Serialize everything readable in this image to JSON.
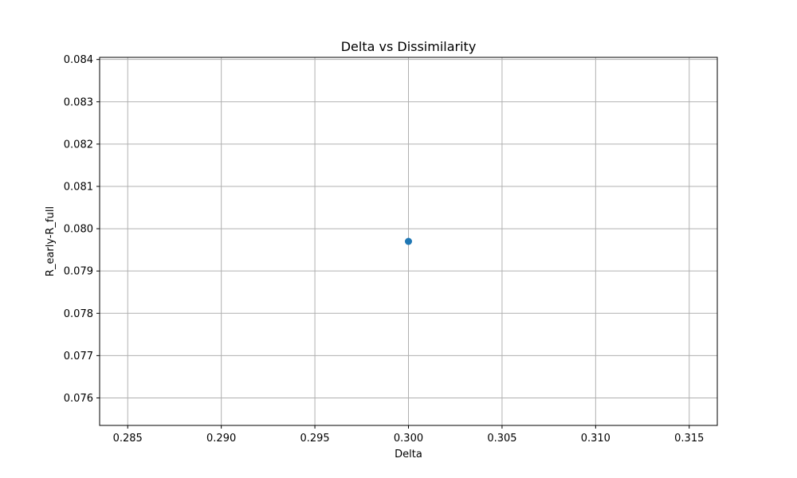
{
  "chart_data": {
    "type": "scatter",
    "title": "Delta vs Dissimilarity",
    "xlabel": "Delta",
    "ylabel": "R_early-R_full",
    "xlim": [
      0.2835,
      0.3165
    ],
    "ylim": [
      0.07535,
      0.08405
    ],
    "x_ticks": [
      "0.285",
      "0.290",
      "0.295",
      "0.300",
      "0.305",
      "0.310",
      "0.315"
    ],
    "y_ticks": [
      "0.076",
      "0.077",
      "0.078",
      "0.079",
      "0.080",
      "0.081",
      "0.082",
      "0.083",
      "0.084"
    ],
    "grid": true,
    "marker_color": "#1f77b4",
    "points": [
      {
        "x": 0.3,
        "y": 0.0797
      }
    ]
  }
}
